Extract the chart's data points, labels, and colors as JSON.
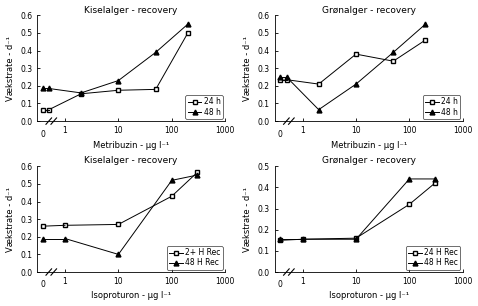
{
  "panels": [
    {
      "title": "Kiselalger - recovery",
      "xlabel": "Metribuzin - µg l⁻¹",
      "ylabel": "Vækstrate - d⁻¹",
      "ylim": [
        0,
        0.6
      ],
      "yticks": [
        0,
        0.1,
        0.2,
        0.3,
        0.4,
        0.5,
        0.6
      ],
      "series": [
        {
          "label": "24 h",
          "x": [
            0.5,
            2,
            10,
            50,
            200
          ],
          "y": [
            0.065,
            0.155,
            0.175,
            0.18,
            0.5
          ],
          "marker": "s",
          "fillstyle": "none",
          "color": "black"
        },
        {
          "label": "48 h",
          "x": [
            0.5,
            2,
            10,
            50,
            200
          ],
          "y": [
            0.185,
            0.16,
            0.23,
            0.39,
            0.55
          ],
          "marker": "^",
          "fillstyle": "full",
          "color": "black"
        }
      ],
      "control_24": 0.065,
      "control_48": 0.185,
      "xlim_log": [
        0.3,
        1000
      ],
      "xticks": [
        1,
        10,
        100,
        1000
      ],
      "xticklabels": [
        "1",
        "10",
        "100",
        "1000"
      ],
      "legend_loc": "lower right"
    },
    {
      "title": "Grønalger - recovery",
      "xlabel": "Metribuzin - µg l⁻¹",
      "ylabel": "Vækstrate - d⁻¹",
      "ylim": [
        0,
        0.6
      ],
      "yticks": [
        0,
        0.1,
        0.2,
        0.3,
        0.4,
        0.5,
        0.6
      ],
      "series": [
        {
          "label": "24 h",
          "x": [
            0.5,
            2,
            10,
            50,
            200
          ],
          "y": [
            0.235,
            0.21,
            0.38,
            0.34,
            0.46
          ],
          "marker": "s",
          "fillstyle": "none",
          "color": "black"
        },
        {
          "label": "48 h",
          "x": [
            0.5,
            2,
            10,
            50,
            200
          ],
          "y": [
            0.25,
            0.065,
            0.21,
            0.39,
            0.55
          ],
          "marker": "^",
          "fillstyle": "full",
          "color": "black"
        }
      ],
      "control_24": 0.235,
      "control_48": 0.25,
      "xlim_log": [
        0.3,
        1000
      ],
      "xticks": [
        1,
        10,
        100,
        1000
      ],
      "xticklabels": [
        "1",
        "10",
        "100",
        "1000"
      ],
      "legend_loc": "lower right"
    },
    {
      "title": "Kiselalger - recovery",
      "xlabel": "Isoproturon - µg l⁻¹",
      "ylabel": "Vækstrate - d⁻¹",
      "ylim": [
        0,
        0.6
      ],
      "yticks": [
        0,
        0.1,
        0.2,
        0.3,
        0.4,
        0.5,
        0.6
      ],
      "series": [
        {
          "label": "2+ H Rec",
          "x": [
            1,
            10,
            100,
            300
          ],
          "y": [
            0.265,
            0.27,
            0.43,
            0.565
          ],
          "marker": "s",
          "fillstyle": "none",
          "color": "black"
        },
        {
          "label": "48 H Rec",
          "x": [
            1,
            10,
            100,
            300
          ],
          "y": [
            0.19,
            0.1,
            0.52,
            0.55
          ],
          "marker": "^",
          "fillstyle": "full",
          "color": "black"
        }
      ],
      "control_24": 0.26,
      "control_48": 0.19,
      "xlim_log": [
        0.3,
        1000
      ],
      "xticks": [
        1,
        10,
        100,
        1000
      ],
      "xticklabels": [
        "1",
        "10",
        "100",
        "1000"
      ],
      "legend_loc": "lower right"
    },
    {
      "title": "Grønalger - recovery",
      "xlabel": "Isoproturon - µg l⁻¹",
      "ylabel": "Vækstrate - d⁻¹",
      "ylim": [
        0,
        0.5
      ],
      "yticks": [
        0,
        0.1,
        0.2,
        0.3,
        0.4,
        0.5
      ],
      "series": [
        {
          "label": "24 H Rec",
          "x": [
            1,
            10,
            100,
            300
          ],
          "y": [
            0.155,
            0.16,
            0.32,
            0.42
          ],
          "marker": "s",
          "fillstyle": "none",
          "color": "black"
        },
        {
          "label": "48 H Rec",
          "x": [
            1,
            10,
            100,
            300
          ],
          "y": [
            0.155,
            0.155,
            0.44,
            0.44
          ],
          "marker": "^",
          "fillstyle": "full",
          "color": "black"
        }
      ],
      "control_24": 0.15,
      "control_48": 0.155,
      "xlim_log": [
        0.3,
        1000
      ],
      "xticks": [
        1,
        10,
        100,
        1000
      ],
      "xticklabels": [
        "1",
        "10",
        "100",
        "1000"
      ],
      "legend_loc": "lower right"
    }
  ],
  "figure_bgcolor": "white",
  "title_fontsize": 6.5,
  "label_fontsize": 6,
  "tick_fontsize": 5.5,
  "legend_fontsize": 5.5
}
